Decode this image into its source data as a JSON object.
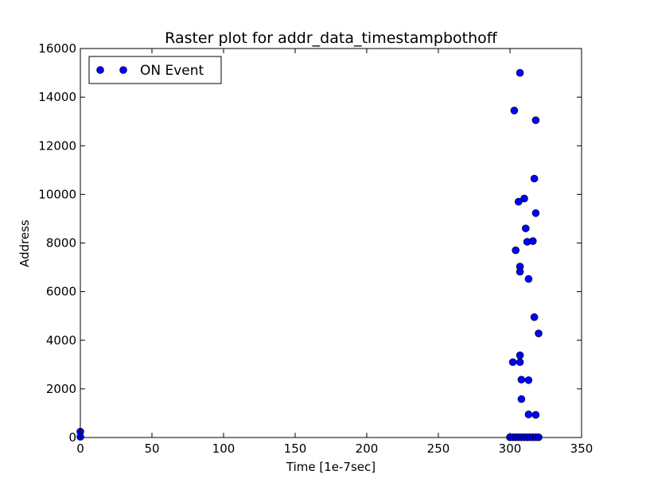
{
  "chart_data": {
    "type": "scatter",
    "title": "Raster plot for addr_data_timestampbothoff",
    "xlabel": "Time [1e-7sec]",
    "ylabel": "Address",
    "xlim": [
      0,
      350
    ],
    "ylim": [
      0,
      16000
    ],
    "xticks": [
      0,
      50,
      100,
      150,
      200,
      250,
      300,
      350
    ],
    "yticks": [
      0,
      2000,
      4000,
      6000,
      8000,
      10000,
      12000,
      14000,
      16000
    ],
    "grid": false,
    "legend_position": "top-left",
    "series": [
      {
        "name": "ON Event",
        "color": "#0000ff",
        "marker": "circle",
        "points": [
          [
            0,
            240
          ],
          [
            0,
            30
          ],
          [
            307,
            15000
          ],
          [
            303,
            13450
          ],
          [
            318,
            13050
          ],
          [
            317,
            10650
          ],
          [
            310,
            9830
          ],
          [
            306,
            9700
          ],
          [
            318,
            9230
          ],
          [
            311,
            8600
          ],
          [
            312,
            8050
          ],
          [
            316,
            8080
          ],
          [
            304,
            7700
          ],
          [
            307,
            7030
          ],
          [
            307,
            6820
          ],
          [
            313,
            6520
          ],
          [
            317,
            4950
          ],
          [
            320,
            4280
          ],
          [
            307,
            3380
          ],
          [
            302,
            3100
          ],
          [
            307,
            3100
          ],
          [
            308,
            2380
          ],
          [
            313,
            2360
          ],
          [
            308,
            1580
          ],
          [
            313,
            950
          ],
          [
            318,
            930
          ],
          [
            300,
            10
          ],
          [
            302,
            10
          ],
          [
            304,
            10
          ],
          [
            306,
            10
          ],
          [
            308,
            10
          ],
          [
            310,
            10
          ],
          [
            312,
            10
          ],
          [
            314,
            10
          ],
          [
            316,
            10
          ],
          [
            318,
            10
          ],
          [
            320,
            10
          ]
        ]
      }
    ]
  }
}
